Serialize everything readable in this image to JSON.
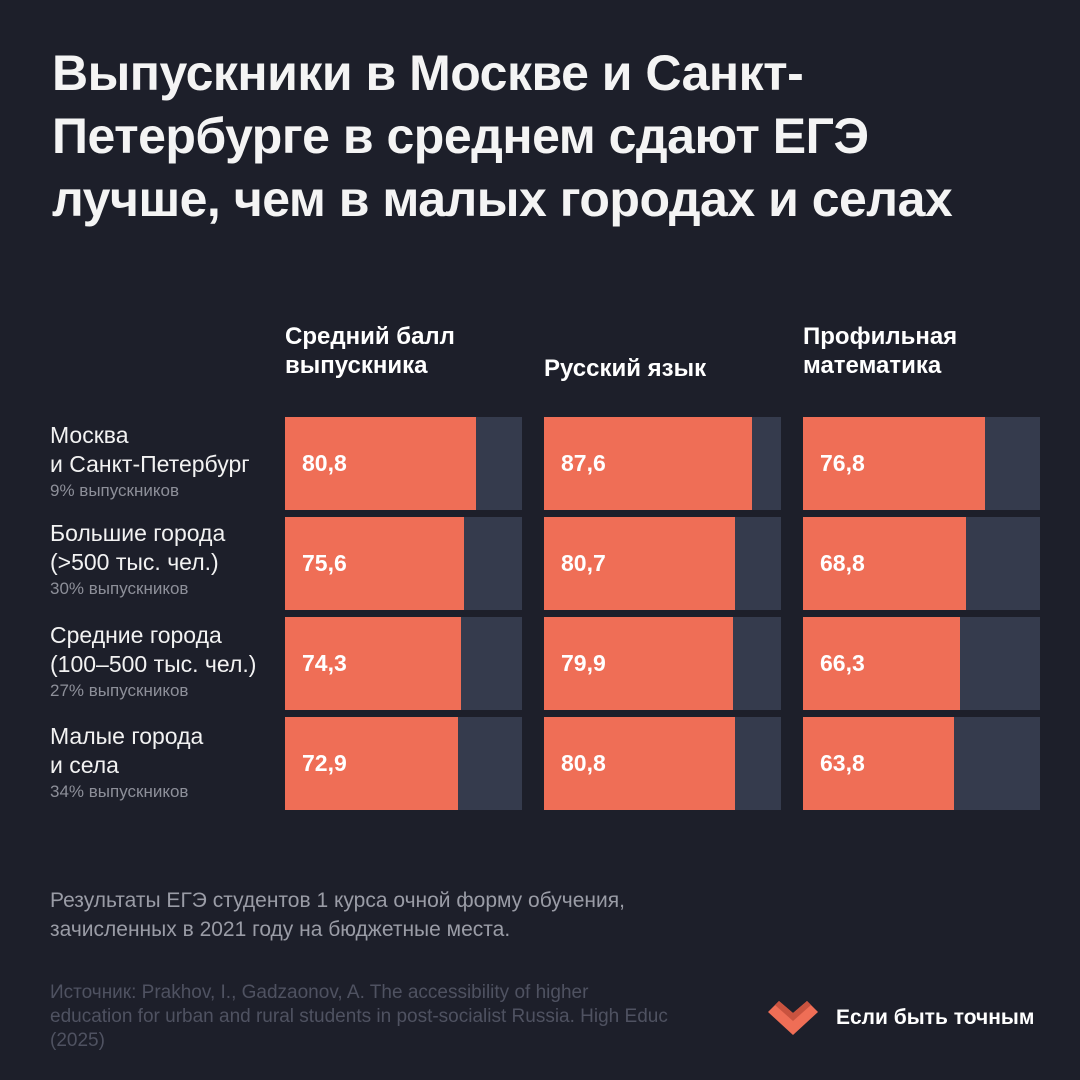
{
  "title_lines": [
    "Выпускники в Москве и Санкт-",
    "Петербурге в среднем сдают ЕГЭ",
    "лучше, чем в малых городах и селах"
  ],
  "columns": [
    {
      "lines": [
        "Средний балл",
        "выпускника"
      ]
    },
    {
      "lines": [
        "Русский язык"
      ]
    },
    {
      "lines": [
        "Профильная",
        "математика"
      ]
    }
  ],
  "rows": [
    {
      "lines": [
        "Москва",
        "и Санкт-Петербург"
      ],
      "share": "9% выпускников",
      "values": [
        "80,8",
        "87,6",
        "76,8"
      ]
    },
    {
      "lines": [
        "Большие города",
        "(>500 тыс. чел.)"
      ],
      "share": "30% выпускников",
      "values": [
        "75,6",
        "80,7",
        "68,8"
      ]
    },
    {
      "lines": [
        "Средние города",
        "(100–500 тыс. чел.)"
      ],
      "share": "27% выпускников",
      "values": [
        "74,3",
        "79,9",
        "66,3"
      ]
    },
    {
      "lines": [
        "Малые города",
        "и села"
      ],
      "share": "34% выпускников",
      "values": [
        "72,9",
        "80,8",
        "63,8"
      ]
    }
  ],
  "note_lines": [
    "Результаты ЕГЭ студентов 1 курса очной форму обучения,",
    "зачисленных в 2021 году на бюджетные места."
  ],
  "source_lines": [
    "Источник: Prakhov, I., Gadzaonov, A. The accessibility of higher",
    "education for urban and rural students in post-socialist Russia. High Educ",
    "(2025)"
  ],
  "brand": {
    "name": "Если быть точным",
    "icon": "heart-logo-icon",
    "color": "#ef6e56"
  },
  "colors": {
    "background": "#1d1f2a",
    "bar": "#ef6e56",
    "track": "#353b4d"
  },
  "chart_data": {
    "type": "bar",
    "orientation": "horizontal",
    "categories": [
      "Москва и Санкт-Петербург",
      "Большие города (>500 тыс. чел.)",
      "Средние города (100–500 тыс. чел.)",
      "Малые города и села"
    ],
    "category_shares": [
      "9% выпускников",
      "30% выпускников",
      "27% выпускников",
      "34% выпускников"
    ],
    "series": [
      {
        "name": "Средний балл выпускника",
        "values": [
          80.8,
          75.6,
          74.3,
          72.9
        ]
      },
      {
        "name": "Русский язык",
        "values": [
          87.6,
          80.7,
          79.9,
          80.8
        ]
      },
      {
        "name": "Профильная математика",
        "values": [
          76.8,
          68.8,
          66.3,
          63.8
        ]
      }
    ],
    "xlim": [
      0,
      100
    ],
    "grid": false
  }
}
